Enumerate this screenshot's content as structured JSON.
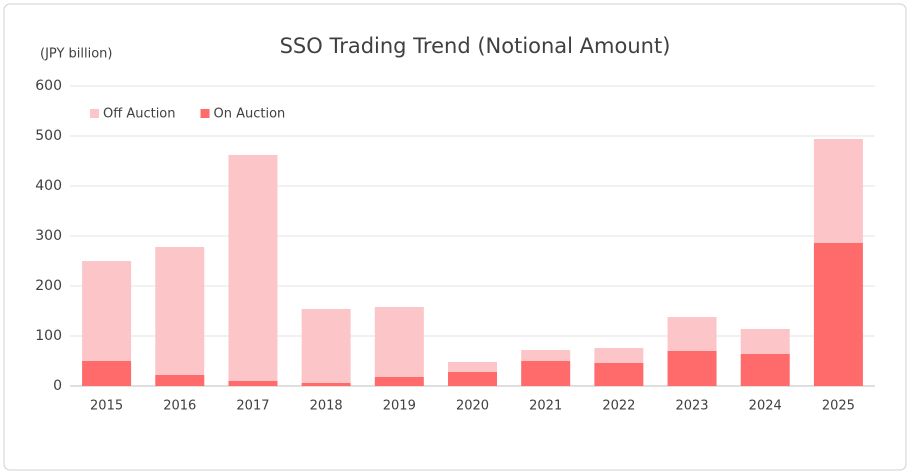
{
  "chart_data": {
    "type": "bar",
    "stacked": true,
    "title": "SSO Trading Trend (Notional Amount)",
    "y_label": "(JPY billion)",
    "categories": [
      "2015",
      "2016",
      "2017",
      "2018",
      "2019",
      "2020",
      "2021",
      "2022",
      "2023",
      "2024",
      "2025"
    ],
    "series": [
      {
        "name": "Off Auction",
        "color": "#fcc5c8",
        "values": [
          200,
          256,
          452,
          148,
          140,
          20,
          22,
          30,
          68,
          50,
          208
        ]
      },
      {
        "name": "On Auction",
        "color": "#ff6b6b",
        "values": [
          50,
          22,
          10,
          6,
          18,
          28,
          50,
          46,
          70,
          64,
          286
        ]
      }
    ],
    "ylim": [
      0,
      600
    ],
    "yticks": [
      0,
      100,
      200,
      300,
      400,
      500,
      600
    ],
    "grid": true
  }
}
